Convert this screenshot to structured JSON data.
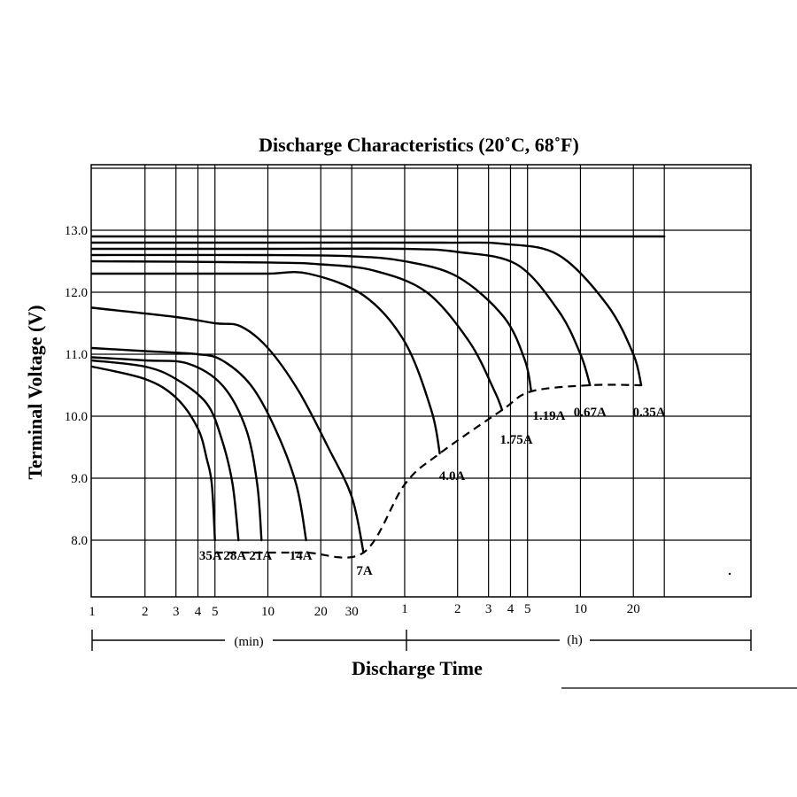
{
  "chart_data": {
    "type": "line",
    "title": "Discharge Characteristics (20˚C, 68˚F)",
    "ylabel": "Terminal Voltage (V)",
    "xlabel": "Discharge Time",
    "x_scale": "log",
    "x_units_left": "(min)",
    "x_units_right": "(h)",
    "ylim": [
      7.0,
      14.2
    ],
    "y_ticks": [
      "13.0",
      "12.0",
      "11.0",
      "10.0",
      "9.0",
      "8.0"
    ],
    "y_tick_values": [
      13.0,
      12.0,
      11.0,
      10.0,
      9.0,
      8.0
    ],
    "x_ticks_min": [
      "1",
      "2",
      "3",
      "4",
      "5",
      "10",
      "20",
      "30"
    ],
    "x_ticks_min_values": [
      1,
      2,
      3,
      4,
      5,
      10,
      20,
      30
    ],
    "x_ticks_h": [
      "1",
      "2",
      "3",
      "4",
      "5",
      "10",
      "20"
    ],
    "x_ticks_h_values": [
      60,
      120,
      180,
      240,
      300,
      600,
      1200
    ],
    "grid": true,
    "series": [
      {
        "name": "35A",
        "x": [
          1,
          2,
          3,
          4,
          4.5,
          4.8,
          5.0
        ],
        "y": [
          10.8,
          10.6,
          10.3,
          9.8,
          9.3,
          8.9,
          8.0
        ]
      },
      {
        "name": "28A",
        "x": [
          1,
          2,
          3,
          4.5,
          5.5,
          6.3,
          6.8
        ],
        "y": [
          10.9,
          10.8,
          10.6,
          10.2,
          9.6,
          8.9,
          8.0
        ]
      },
      {
        "name": "21A",
        "x": [
          1,
          2,
          3.5,
          5.5,
          7.5,
          8.7,
          9.2
        ],
        "y": [
          10.95,
          10.9,
          10.85,
          10.5,
          9.8,
          8.9,
          8.0
        ]
      },
      {
        "name": "14A",
        "x": [
          1,
          2,
          4,
          5.5,
          8,
          11,
          14.5,
          16.5
        ],
        "y": [
          11.1,
          11.05,
          11.0,
          10.9,
          10.5,
          9.8,
          8.9,
          8.0
        ]
      },
      {
        "name": "7A",
        "x": [
          1,
          3,
          5,
          7,
          10,
          15,
          22,
          30,
          35
        ],
        "y": [
          11.75,
          11.6,
          11.5,
          11.45,
          11.1,
          10.4,
          9.5,
          8.7,
          7.8
        ]
      },
      {
        "name": "4.0A",
        "x": [
          1,
          5,
          10,
          17,
          35,
          60,
          85,
          95
        ],
        "y": [
          12.3,
          12.3,
          12.3,
          12.3,
          11.95,
          11.2,
          10.1,
          9.4
        ]
      },
      {
        "name": "1.75A",
        "x": [
          1,
          10,
          20,
          40,
          80,
          140,
          195,
          215
        ],
        "y": [
          12.5,
          12.48,
          12.45,
          12.35,
          12.0,
          11.2,
          10.4,
          10.1
        ]
      },
      {
        "name": "1.19A",
        "x": [
          1,
          10,
          30,
          60,
          120,
          220,
          290,
          315
        ],
        "y": [
          12.6,
          12.6,
          12.58,
          12.5,
          12.25,
          11.6,
          10.9,
          10.4
        ]
      },
      {
        "name": "0.67A",
        "x": [
          1,
          10,
          60,
          120,
          260,
          450,
          600,
          680
        ],
        "y": [
          12.7,
          12.7,
          12.7,
          12.65,
          12.45,
          11.7,
          11.0,
          10.5
        ]
      },
      {
        "name": "0.35A",
        "x": [
          1,
          10,
          100,
          220,
          450,
          850,
          1200,
          1330
        ],
        "y": [
          12.8,
          12.8,
          12.8,
          12.78,
          12.6,
          11.8,
          11.0,
          10.5
        ]
      },
      {
        "name": "",
        "x": [
          1,
          1800
        ],
        "y": [
          12.9,
          12.9
        ]
      }
    ],
    "end_voltage_line": {
      "x": [
        5.0,
        6.8,
        9.2,
        16.5,
        35,
        60,
        95,
        215,
        315,
        680,
        1330
      ],
      "y": [
        7.8,
        7.8,
        7.8,
        7.8,
        7.8,
        8.9,
        9.4,
        10.1,
        10.4,
        10.5,
        10.5
      ]
    }
  }
}
